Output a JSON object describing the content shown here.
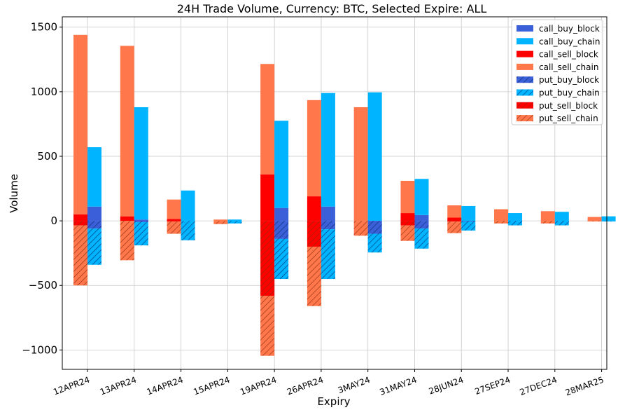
{
  "chart_data": {
    "type": "bar",
    "title": "24H Trade Volume, Currency: BTC, Selected Expire: ALL",
    "xlabel": "Expiry",
    "ylabel": "Volume",
    "ylim": [
      -1150,
      1580
    ],
    "yticks": [
      -1000,
      -500,
      0,
      500,
      1000,
      1500
    ],
    "ytick_labels": [
      "−1000",
      "−500",
      "0",
      "500",
      "1000",
      "1500"
    ],
    "grid": true,
    "legend_position": "top-right",
    "categories": [
      "12APR24",
      "13APR24",
      "14APR24",
      "15APR24",
      "19APR24",
      "26APR24",
      "3MAY24",
      "31MAY24",
      "28JUN24",
      "27SEP24",
      "27DEC24",
      "28MAR25"
    ],
    "series": [
      {
        "name": "call_buy_block",
        "group": "buy",
        "color": "#3a5fd9",
        "hatch": false,
        "values": [
          110,
          10,
          0,
          0,
          100,
          110,
          0,
          45,
          0,
          0,
          0,
          0
        ]
      },
      {
        "name": "call_buy_chain",
        "group": "buy",
        "color": "#00b4ff",
        "hatch": false,
        "values": [
          460,
          870,
          235,
          10,
          675,
          880,
          995,
          280,
          115,
          60,
          70,
          35
        ]
      },
      {
        "name": "call_sell_block",
        "group": "sell",
        "color": "#ff0000",
        "hatch": false,
        "values": [
          50,
          35,
          15,
          0,
          360,
          190,
          0,
          60,
          25,
          0,
          0,
          0
        ]
      },
      {
        "name": "call_sell_chain",
        "group": "sell",
        "color": "#ff774a",
        "hatch": false,
        "values": [
          1390,
          1320,
          150,
          10,
          855,
          745,
          880,
          250,
          95,
          90,
          75,
          30
        ]
      },
      {
        "name": "put_buy_block",
        "group": "buy",
        "color": "#3a5fd9",
        "hatch": true,
        "values": [
          -60,
          -10,
          0,
          0,
          -140,
          -65,
          -100,
          -60,
          -5,
          0,
          0,
          0
        ]
      },
      {
        "name": "put_buy_chain",
        "group": "buy",
        "color": "#00b4ff",
        "hatch": true,
        "values": [
          -280,
          -180,
          -150,
          -20,
          -310,
          -385,
          -145,
          -155,
          -70,
          -35,
          -35,
          -5
        ]
      },
      {
        "name": "put_sell_block",
        "group": "sell",
        "color": "#ff0000",
        "hatch": true,
        "values": [
          -35,
          0,
          -5,
          0,
          -580,
          -200,
          0,
          -35,
          -5,
          0,
          0,
          0
        ]
      },
      {
        "name": "put_sell_chain",
        "group": "sell",
        "color": "#ff774a",
        "hatch": true,
        "values": [
          -465,
          -305,
          -95,
          -25,
          -465,
          -460,
          -115,
          -120,
          -90,
          -20,
          -20,
          -5
        ]
      }
    ]
  }
}
